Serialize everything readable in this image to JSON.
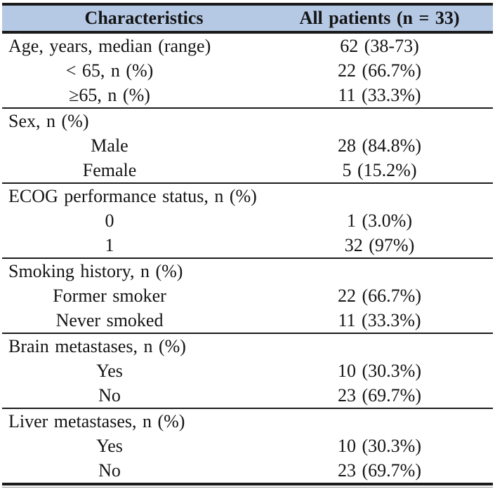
{
  "table": {
    "header": {
      "characteristics": "Characteristics",
      "all_patients": "All patients (n = 33)"
    },
    "sections": [
      {
        "rows": [
          {
            "label": "Age, years, median (range)",
            "value": "62 (38-73)",
            "indent": false
          },
          {
            "label": "< 65, n (%)",
            "value": "22 (66.7%)",
            "indent": true
          },
          {
            "label": "≥65, n (%)",
            "value": "11 (33.3%)",
            "indent": true
          }
        ]
      },
      {
        "rows": [
          {
            "label": "Sex, n (%)",
            "value": "",
            "indent": false
          },
          {
            "label": "Male",
            "value": "28 (84.8%)",
            "indent": true
          },
          {
            "label": "Female",
            "value": "5 (15.2%)",
            "indent": true
          }
        ]
      },
      {
        "rows": [
          {
            "label": "ECOG performance status, n (%)",
            "value": "",
            "indent": false
          },
          {
            "label": "0",
            "value": "1 (3.0%)",
            "indent": true
          },
          {
            "label": "1",
            "value": "32 (97%)",
            "indent": true
          }
        ]
      },
      {
        "rows": [
          {
            "label": "Smoking history, n (%)",
            "value": "",
            "indent": false
          },
          {
            "label": "Former smoker",
            "value": "22 (66.7%)",
            "indent": true
          },
          {
            "label": "Never smoked",
            "value": "11 (33.3%)",
            "indent": true
          }
        ]
      },
      {
        "rows": [
          {
            "label": "Brain metastases, n (%)",
            "value": "",
            "indent": false
          },
          {
            "label": "Yes",
            "value": "10 (30.3%)",
            "indent": true
          },
          {
            "label": "No",
            "value": "23 (69.7%)",
            "indent": true
          }
        ]
      },
      {
        "rows": [
          {
            "label": "Liver metastases, n (%)",
            "value": "",
            "indent": false
          },
          {
            "label": "Yes",
            "value": "10 (30.3%)",
            "indent": true
          },
          {
            "label": "No",
            "value": "23 (69.7%)",
            "indent": true
          }
        ]
      }
    ]
  },
  "colors": {
    "header_bg": "#b5c8e4",
    "border": "#1b1b1b",
    "text": "#141414",
    "thin_line": "#9a9a9a"
  }
}
